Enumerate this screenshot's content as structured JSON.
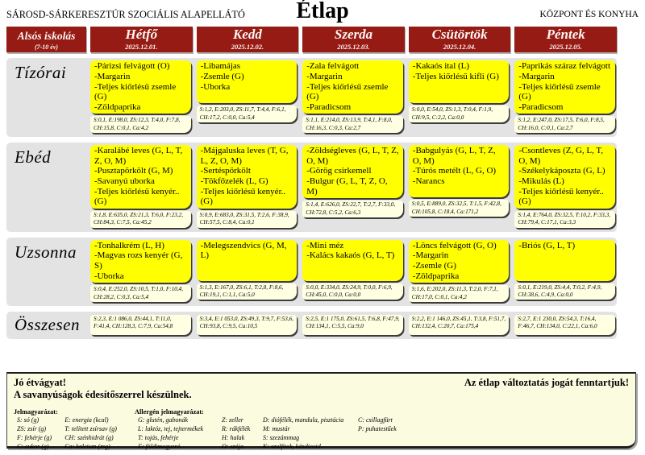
{
  "colors": {
    "header_red": "#961B14",
    "highlight_yellow": "#FFFF00",
    "strip_cream": "#FFFFE2",
    "band_gray": "#E3E3E3",
    "note_cream": "#FBFBE0"
  },
  "header": {
    "left": "SÁROSD-SÁRKERESZTÚR SZOCIÁLIS ALAPELLÁTÓ",
    "center": "Étlap",
    "right": "KÖZPONT ÉS KONYHA"
  },
  "table": {
    "corner": {
      "label": "Alsós iskolás",
      "sublabel": "(7-10 év)"
    },
    "days": [
      {
        "name": "Hétfő",
        "date": "2025.12.01."
      },
      {
        "name": "Kedd",
        "date": "2025.12.02."
      },
      {
        "name": "Szerda",
        "date": "2025.12.03."
      },
      {
        "name": "Csütörtök",
        "date": "2025.12.04."
      },
      {
        "name": "Péntek",
        "date": "2025.12.05."
      }
    ],
    "rows": [
      {
        "label": "Tízórai",
        "cells": [
          {
            "items": [
              "-Párizsi felvágott (O)",
              "-Margarin",
              "-Teljes kiőrlésű zsemle (G)",
              "-Zöldpaprika"
            ],
            "nutrition": "S:0,1, E:198,0, ZS:12,3, T:4,0, F:7,8, CH:15,8, C:0,1, Ca:4,2"
          },
          {
            "items": [
              "-Libamájas",
              "-Zsemle (G)",
              "-Uborka"
            ],
            "nutrition": "S:1,2, E:203,0, ZS:11,7, T:4,4, F:6,1, CH:17,2, C:0,0, Ca:5,4"
          },
          {
            "items": [
              "-Zala felvágott",
              "-Margarin",
              "-Teljes kiőrlésű zsemle (G)",
              "-Paradicsom"
            ],
            "nutrition": "S:1,1, E:214,0, ZS:13,9, T:4,1, F:8,0, CH:16,3, C:0,3, Ca:2,7"
          },
          {
            "items": [
              "-Kakaós ital (L)",
              "-Teljes kiőrlésű kifli (G)"
            ],
            "nutrition": "S:0,0, E:54,0, ZS:1,3, T:0,4, F:1,9, CH:9,5, C:2,2, Ca:0,0"
          },
          {
            "items": [
              "-Paprikás száraz felvágott",
              "-Margarin",
              "-Teljes kiőrlésű zsemle (G)",
              "-Paradicsom"
            ],
            "nutrition": "S:1,2, E:247,0, ZS:17,5, T:6,0, F:8,5, CH:16,0, C:0,1, Ca:2,7"
          }
        ]
      },
      {
        "label": "Ebéd",
        "cells": [
          {
            "items": [
              "-Karalábé leves (G, L, T, Z, O, M)",
              "-Pusztapörkölt (G, M)",
              "-Savanyú uborka",
              "-Teljes kiőrlésű kenyér.. (G)"
            ],
            "nutrition": "S:1,8, E:635,0, ZS:21,3, T:6,0, F:23,2, CH:84,3, C:7,5, Ca:45,2"
          },
          {
            "items": [
              "-Májgaluska leves (T, G, L, Z, O, M)",
              "-Sertéspörkölt",
              "-Tökfőzelék (L, G)",
              "-Teljes kiőrlésű kenyér.. (G)"
            ],
            "nutrition": "S:0,9, E:683,0, ZS:31,5, T:2,6, F:38,9, CH:57,5, C:8,4, Ca:0,1"
          },
          {
            "items": [
              "-Zöldségleves (G, L, T, Z, O, M)",
              "-Görög csirkemell",
              "-Bulgur (G, L, T, Z, O, M)"
            ],
            "nutrition": "S:1,4, E:626,0, ZS:22,7, T:2,7, F:33,0, CH:72,8, C:5,2, Ca:6,3"
          },
          {
            "items": [
              "-Babgulyás (G, L, T, Z, O, M)",
              "-Túrós metélt (L, G, O)",
              "-Narancs"
            ],
            "nutrition": "S:0,5, E:889,0, ZS:32,5, T:1,5, F:42,8, CH:105,8, C:18,4, Ca:171,2"
          },
          {
            "items": [
              "-Csontleves (Z, G, L, T, O, M)",
              "-Székelykáposzta (G, L)",
              "-Mikulás (L)",
              "-Teljes kiőrlésű kenyér.. (G)"
            ],
            "nutrition": "S:1,4, E:764,0, ZS:32,5, T:10,2, F:33,3, CH:79,4, C:17,1, Ca:3,3"
          }
        ]
      },
      {
        "label": "Uzsonna",
        "cells": [
          {
            "items": [
              "-Tonhalkrém (L, H)",
              "-Magvas rozs kenyér (G, S)",
              "-Uborka"
            ],
            "nutrition": "S:0,4, E:252,0, ZS:10,5, T:1,0, F:10,4, CH:28,2, C:0,3, Ca:5,4"
          },
          {
            "items": [
              "-Melegszendvics (G, M, L)"
            ],
            "nutrition": "S:1,3, E:167,0, ZS:6,1, T:2,8, F:8,6, CH:19,1, C:1,1, Ca:5,0"
          },
          {
            "items": [
              "-Mini méz",
              "-Kalács kakaós (G, L, T)"
            ],
            "nutrition": "S:0,0, E:334,0, ZS:24,9, T:0,0, F:6,9, CH:45,0, C:0,0, Ca:0,0"
          },
          {
            "items": [
              "-Löncs felvágott (G, O)",
              "-Margarin",
              "-Zsemle (G)",
              "-Zöldpaprika"
            ],
            "nutrition": "S:1,6, E:202,0, ZS:11,3, T:2,0, F:7,1, CH:17,0, C:0,1, Ca:4,2"
          },
          {
            "items": [
              "-Briós (G, L, T)"
            ],
            "nutrition": "S:0,1, E:219,0, ZS:4,4, T:0,2, F:4,9, CH:38,6, C:4,9, Ca:0,0"
          }
        ]
      },
      {
        "label": "Összesen",
        "totals": [
          "S:2,3, E:1 086,0, ZS:44,1, T:11,0, F:41,4, CH:128,3, C:7,9, Ca:54,8",
          "S:3,4, E:1 053,0, ZS:49,3, T:9,7, F:53,6, CH:93,8, C:9,5, Ca:10,5",
          "S:2,5, E:1 175,0, ZS:61,5, T:6,8, F:47,9, CH:134,1, C:5,5, Ca:9,0",
          "S:2,2, E:1 146,0, ZS:45,1, T:3,8, F:51,7, CH:132,4, C:20,7, Ca:175,4",
          "S:2,7, E:1 230,0, ZS:54,3, T:16,4, F:46,7, CH:134,0, C:22,1, Ca:6,0"
        ]
      }
    ]
  },
  "footer": {
    "bon_appetit": "Jó étvágyat!",
    "sweetener_note": "A savanyúságok édesítőszerrel készülnek.",
    "rights_note": "Az étlap változtatás jogát fenntartjuk!",
    "legend_title": "Jelmagyarázat:",
    "allergen_title": "Allergén jelmagyarázat:",
    "legend_col_a": [
      "S: só (g)",
      "ZS: zsír (g)",
      "F: fehérje (g)",
      "C: cukor (g)"
    ],
    "legend_col_b": [
      "E: energia (kcal)",
      "T: telített zsírsav (g)",
      "CH: szénhidrát (g)",
      "Ca: kalcium (mg)"
    ],
    "allergen_col_a": [
      "G: glutén, gabonák",
      "L: laktóz, tej, tejtermékek",
      "T: tojás, fehérje",
      "F: földimogyoró"
    ],
    "allergen_col_b": [
      "Z: zeller",
      "R: rákfélék",
      "H: halak",
      "O: szója"
    ],
    "allergen_col_c": [
      "D: diófélék, mandula, pisztácia",
      "M: mustár",
      "S: szezámmag",
      "K: szulfitok, kéndioxid"
    ],
    "allergen_col_d": [
      "C: csillagfürt",
      "P: puhatestűek"
    ]
  }
}
